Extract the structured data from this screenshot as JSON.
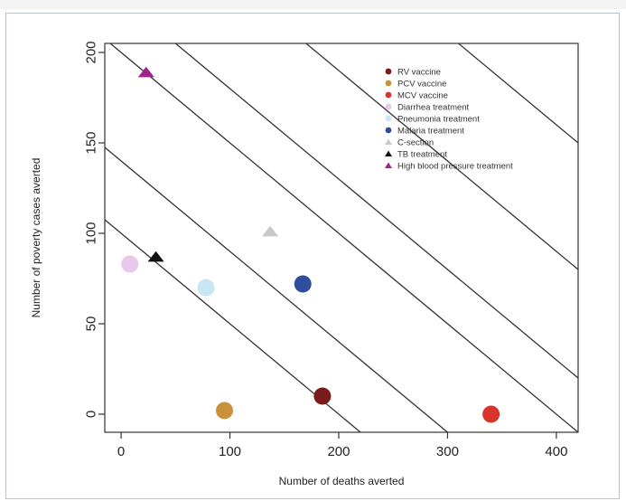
{
  "chart_data": {
    "type": "scatter",
    "title": "",
    "xlabel": "Number of deaths averted",
    "ylabel": "Number of poverty cases averted",
    "xlim": [
      -15,
      420
    ],
    "ylim": [
      -10,
      205
    ],
    "xticks": [
      0,
      100,
      200,
      300,
      400
    ],
    "yticks": [
      0,
      50,
      100,
      150,
      200
    ],
    "grid": false,
    "legend_position": "top-right",
    "series": [
      {
        "name": "RV vaccine",
        "marker": "circle",
        "color": "#7b1a1a",
        "x": 185,
        "y": 10
      },
      {
        "name": "PCV vaccine",
        "marker": "circle",
        "color": "#c8913a",
        "x": 95,
        "y": 2
      },
      {
        "name": "MCV vaccine",
        "marker": "circle",
        "color": "#d9332b",
        "x": 340,
        "y": 0
      },
      {
        "name": "Diarrhea treatment",
        "marker": "circle",
        "color": "#e9c8ea",
        "x": 8,
        "y": 83
      },
      {
        "name": "Pneumonia treatment",
        "marker": "circle",
        "color": "#c9e6f3",
        "x": 78,
        "y": 70
      },
      {
        "name": "Malaria treatment",
        "marker": "circle",
        "color": "#2f4f9e",
        "x": 167,
        "y": 72
      },
      {
        "name": "C-section",
        "marker": "triangle",
        "color": "#c8c8c8",
        "x": 137,
        "y": 101
      },
      {
        "name": "TB treatment",
        "marker": "triangle",
        "color": "#111111",
        "x": 32,
        "y": 87
      },
      {
        "name": "High blood pressure treatment",
        "marker": "triangle",
        "color": "#a0228f",
        "x": 23,
        "y": 189
      }
    ],
    "reference_lines": [
      {
        "slope": -0.5,
        "intercept": 100
      },
      {
        "slope": -0.5,
        "intercept": 140
      },
      {
        "slope": -0.5,
        "intercept": 200
      },
      {
        "slope": -0.5,
        "intercept": 230
      },
      {
        "slope": -0.5,
        "intercept": 290
      },
      {
        "slope": -0.5,
        "intercept": 360
      }
    ]
  }
}
